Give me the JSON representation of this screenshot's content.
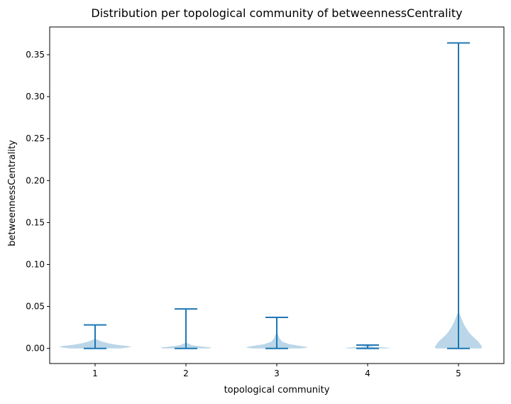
{
  "chart_data": {
    "type": "violin",
    "title": "Distribution per topological community of betweennessCentrality",
    "xlabel": "topological community",
    "ylabel": "betweennessCentrality",
    "ylim": [
      -0.018,
      0.383
    ],
    "xlim": [
      0.5,
      5.5
    ],
    "yticks": [
      0.0,
      0.05,
      0.1,
      0.15,
      0.2,
      0.25,
      0.3,
      0.35
    ],
    "ytick_labels": [
      "0.00",
      "0.05",
      "0.10",
      "0.15",
      "0.20",
      "0.25",
      "0.30",
      "0.35"
    ],
    "categories": [
      "1",
      "2",
      "3",
      "4",
      "5"
    ],
    "colors": {
      "line": "#1f77b4",
      "fill": "#1f77b4",
      "fill_opacity": 0.3
    },
    "grid": false,
    "violins": [
      {
        "category": "1",
        "min": 0.0,
        "max": 0.028,
        "density": [
          [
            0.0,
            0.28
          ],
          [
            0.001,
            0.36
          ],
          [
            0.002,
            0.4
          ],
          [
            0.003,
            0.36
          ],
          [
            0.004,
            0.26
          ],
          [
            0.006,
            0.15
          ],
          [
            0.008,
            0.08
          ],
          [
            0.01,
            0.03
          ],
          [
            0.012,
            0.0
          ]
        ]
      },
      {
        "category": "2",
        "min": 0.0,
        "max": 0.047,
        "density": [
          [
            0.0,
            0.26
          ],
          [
            0.001,
            0.28
          ],
          [
            0.002,
            0.2
          ],
          [
            0.003,
            0.12
          ],
          [
            0.004,
            0.06
          ],
          [
            0.006,
            0.02
          ],
          [
            0.007,
            0.0
          ]
        ]
      },
      {
        "category": "3",
        "min": 0.0,
        "max": 0.037,
        "density": [
          [
            0.0,
            0.26
          ],
          [
            0.001,
            0.34
          ],
          [
            0.002,
            0.32
          ],
          [
            0.003,
            0.26
          ],
          [
            0.005,
            0.14
          ],
          [
            0.008,
            0.06
          ],
          [
            0.012,
            0.03
          ],
          [
            0.016,
            0.015
          ],
          [
            0.02,
            0.0
          ]
        ]
      },
      {
        "category": "4",
        "min": 0.0,
        "max": 0.004,
        "density": [
          [
            0.0,
            0.2
          ],
          [
            0.0005,
            0.25
          ],
          [
            0.001,
            0.22
          ],
          [
            0.0015,
            0.14
          ],
          [
            0.002,
            0.07
          ],
          [
            0.003,
            0.02
          ],
          [
            0.004,
            0.0
          ]
        ]
      },
      {
        "category": "5",
        "min": 0.0,
        "max": 0.364,
        "density": [
          [
            0.0,
            0.25
          ],
          [
            0.002,
            0.26
          ],
          [
            0.005,
            0.24
          ],
          [
            0.008,
            0.22
          ],
          [
            0.012,
            0.18
          ],
          [
            0.016,
            0.14
          ],
          [
            0.02,
            0.11
          ],
          [
            0.025,
            0.08
          ],
          [
            0.03,
            0.055
          ],
          [
            0.035,
            0.035
          ],
          [
            0.04,
            0.018
          ],
          [
            0.043,
            0.0
          ]
        ]
      }
    ]
  }
}
